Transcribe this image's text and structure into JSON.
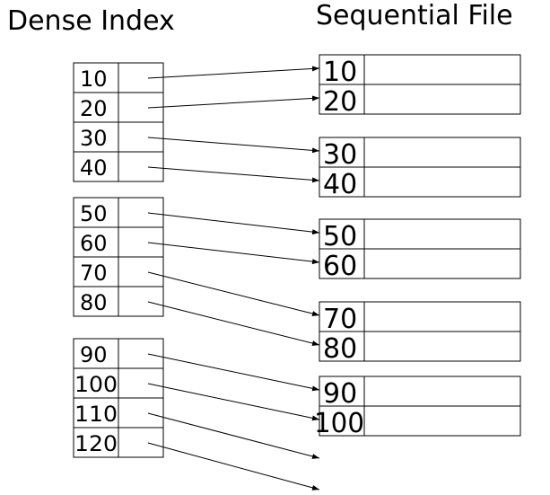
{
  "titles": {
    "dense_index": "Dense Index",
    "sequential_file": "Sequential File"
  },
  "index_blocks": [
    [
      "10",
      "20",
      "30",
      "40"
    ],
    [
      "50",
      "60",
      "70",
      "80"
    ],
    [
      "90",
      "100",
      "110",
      "120"
    ]
  ],
  "file_blocks": [
    [
      "10",
      "20"
    ],
    [
      "30",
      "40"
    ],
    [
      "50",
      "60"
    ],
    [
      "70",
      "80"
    ],
    [
      "90",
      "100"
    ]
  ]
}
